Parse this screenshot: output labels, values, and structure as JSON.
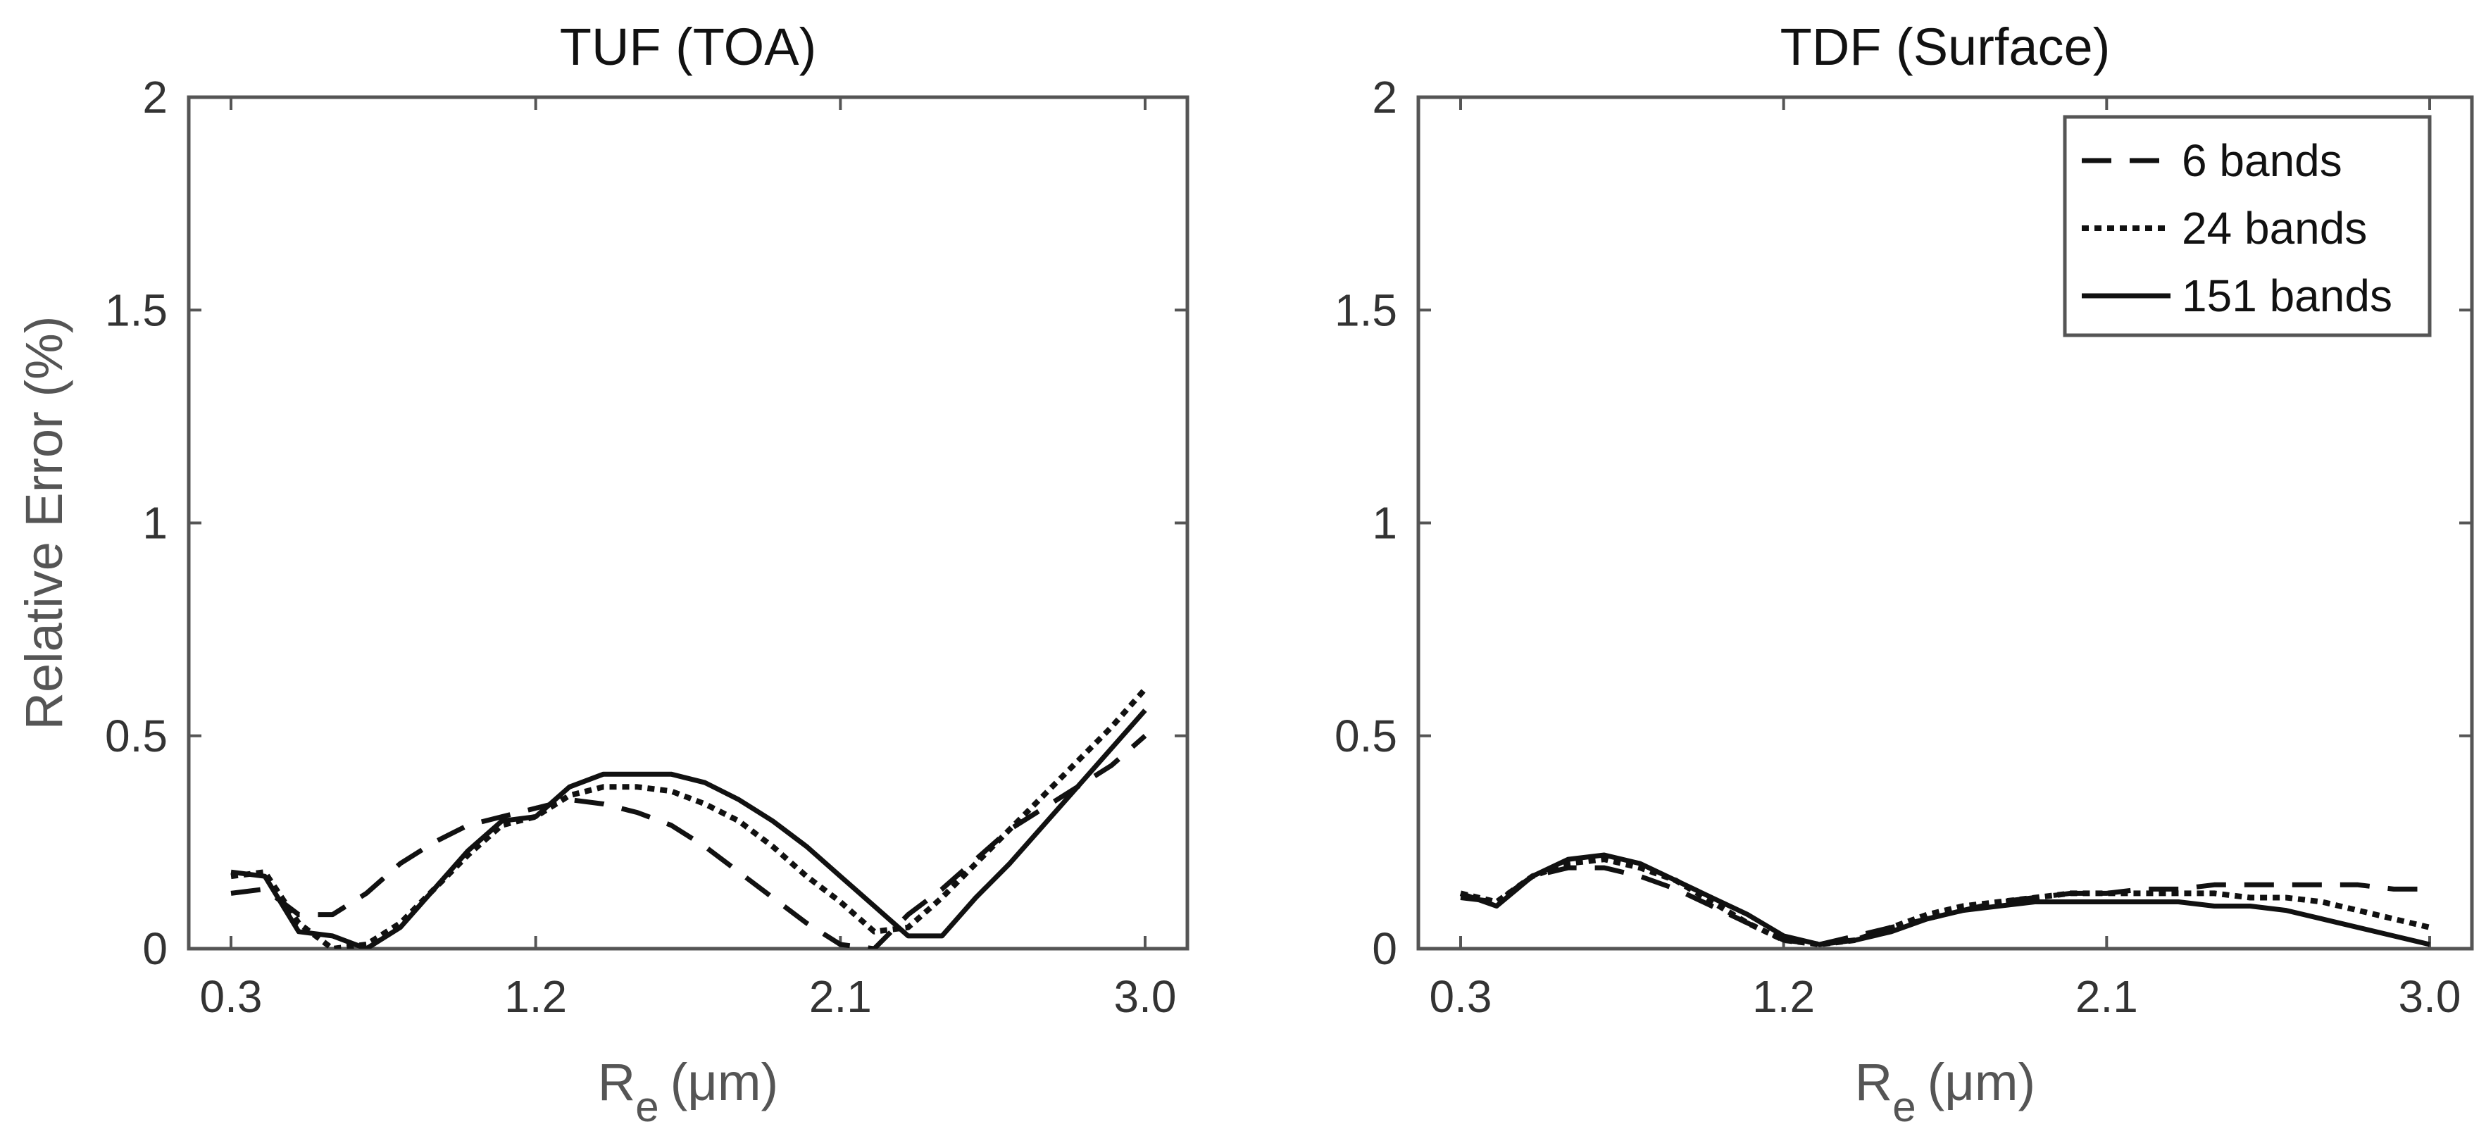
{
  "chart_data": [
    {
      "type": "line",
      "title": "TUF (TOA)",
      "xlabel_main": "R",
      "xlabel_sub": "e",
      "xlabel_unit": "(μm)",
      "ylabel": "Relative Error (%)",
      "xlim": [
        0.3,
        3.0
      ],
      "ylim": [
        0,
        2
      ],
      "xticks": [
        "0.3",
        "1.2",
        "2.1",
        "3.0"
      ],
      "xtick_values": [
        0.3,
        1.2,
        2.1,
        3.0
      ],
      "yticks": [
        "0",
        "0.5",
        "1",
        "1.5",
        "2"
      ],
      "ytick_values": [
        0,
        0.5,
        1,
        1.5,
        2
      ],
      "series": [
        {
          "name": "6 bands",
          "style": "dashed",
          "x": [
            0.3,
            0.4,
            0.5,
            0.6,
            0.7,
            0.8,
            0.9,
            1.0,
            1.1,
            1.2,
            1.3,
            1.4,
            1.5,
            1.6,
            1.7,
            1.8,
            1.9,
            2.0,
            2.1,
            2.2,
            2.3,
            2.4,
            2.5,
            2.6,
            2.7,
            2.8,
            2.9,
            3.0
          ],
          "y": [
            0.13,
            0.14,
            0.08,
            0.08,
            0.13,
            0.2,
            0.25,
            0.29,
            0.31,
            0.33,
            0.35,
            0.34,
            0.32,
            0.29,
            0.24,
            0.18,
            0.12,
            0.06,
            0.01,
            0.0,
            0.08,
            0.14,
            0.21,
            0.28,
            0.33,
            0.38,
            0.43,
            0.5
          ]
        },
        {
          "name": "24 bands",
          "style": "dotted",
          "x": [
            0.3,
            0.4,
            0.5,
            0.6,
            0.7,
            0.8,
            0.9,
            1.0,
            1.1,
            1.2,
            1.3,
            1.4,
            1.5,
            1.6,
            1.7,
            1.8,
            1.9,
            2.0,
            2.1,
            2.2,
            2.3,
            2.4,
            2.5,
            2.6,
            2.7,
            2.8,
            2.9,
            3.0
          ],
          "y": [
            0.17,
            0.18,
            0.06,
            0.0,
            0.01,
            0.06,
            0.14,
            0.22,
            0.29,
            0.31,
            0.36,
            0.38,
            0.38,
            0.37,
            0.34,
            0.3,
            0.24,
            0.17,
            0.11,
            0.04,
            0.05,
            0.12,
            0.2,
            0.28,
            0.36,
            0.44,
            0.52,
            0.61
          ]
        },
        {
          "name": "151 bands",
          "style": "solid",
          "x": [
            0.3,
            0.4,
            0.5,
            0.6,
            0.7,
            0.8,
            0.9,
            1.0,
            1.1,
            1.2,
            1.3,
            1.4,
            1.5,
            1.6,
            1.7,
            1.8,
            1.9,
            2.0,
            2.1,
            2.2,
            2.3,
            2.4,
            2.5,
            2.6,
            2.7,
            2.8,
            2.9,
            3.0
          ],
          "y": [
            0.18,
            0.17,
            0.04,
            0.03,
            0.0,
            0.05,
            0.14,
            0.23,
            0.3,
            0.31,
            0.38,
            0.41,
            0.41,
            0.41,
            0.39,
            0.35,
            0.3,
            0.24,
            0.17,
            0.1,
            0.03,
            0.03,
            0.12,
            0.2,
            0.29,
            0.38,
            0.47,
            0.56
          ]
        }
      ]
    },
    {
      "type": "line",
      "title": "TDF (Surface)",
      "xlabel_main": "R",
      "xlabel_sub": "e",
      "xlabel_unit": "(μm)",
      "ylabel": "",
      "xlim": [
        0.3,
        3.0
      ],
      "ylim": [
        0,
        2
      ],
      "xticks": [
        "0.3",
        "1.2",
        "2.1",
        "3.0"
      ],
      "xtick_values": [
        0.3,
        1.2,
        2.1,
        3.0
      ],
      "yticks": [
        "0",
        "0.5",
        "1",
        "1.5",
        "2"
      ],
      "ytick_values": [
        0,
        0.5,
        1,
        1.5,
        2
      ],
      "legend_position": "top-right",
      "series": [
        {
          "name": "6 bands",
          "style": "dashed",
          "x": [
            0.3,
            0.4,
            0.5,
            0.6,
            0.7,
            0.8,
            0.9,
            1.0,
            1.1,
            1.2,
            1.3,
            1.4,
            1.5,
            1.6,
            1.7,
            1.8,
            1.9,
            2.0,
            2.1,
            2.2,
            2.3,
            2.4,
            2.5,
            2.6,
            2.7,
            2.8,
            2.9,
            3.0
          ],
          "y": [
            0.12,
            0.11,
            0.17,
            0.19,
            0.19,
            0.17,
            0.14,
            0.1,
            0.06,
            0.02,
            0.01,
            0.03,
            0.05,
            0.07,
            0.09,
            0.11,
            0.12,
            0.13,
            0.13,
            0.14,
            0.14,
            0.15,
            0.15,
            0.15,
            0.15,
            0.15,
            0.14,
            0.14
          ]
        },
        {
          "name": "24 bands",
          "style": "dotted",
          "x": [
            0.3,
            0.4,
            0.5,
            0.6,
            0.7,
            0.8,
            0.9,
            1.0,
            1.1,
            1.2,
            1.3,
            1.4,
            1.5,
            1.6,
            1.7,
            1.8,
            1.9,
            2.0,
            2.1,
            2.2,
            2.3,
            2.4,
            2.5,
            2.6,
            2.7,
            2.8,
            2.9,
            3.0
          ],
          "y": [
            0.13,
            0.11,
            0.17,
            0.2,
            0.21,
            0.19,
            0.16,
            0.11,
            0.06,
            0.02,
            0.01,
            0.02,
            0.05,
            0.08,
            0.1,
            0.11,
            0.12,
            0.13,
            0.13,
            0.13,
            0.13,
            0.13,
            0.12,
            0.12,
            0.11,
            0.09,
            0.07,
            0.05
          ]
        },
        {
          "name": "151 bands",
          "style": "solid",
          "x": [
            0.3,
            0.4,
            0.5,
            0.6,
            0.7,
            0.8,
            0.9,
            1.0,
            1.1,
            1.2,
            1.3,
            1.4,
            1.5,
            1.6,
            1.7,
            1.8,
            1.9,
            2.0,
            2.1,
            2.2,
            2.3,
            2.4,
            2.5,
            2.6,
            2.7,
            2.8,
            2.9,
            3.0
          ],
          "y": [
            0.13,
            0.1,
            0.17,
            0.21,
            0.22,
            0.2,
            0.16,
            0.12,
            0.08,
            0.03,
            0.01,
            0.02,
            0.04,
            0.07,
            0.09,
            0.1,
            0.11,
            0.11,
            0.11,
            0.11,
            0.11,
            0.1,
            0.1,
            0.09,
            0.07,
            0.05,
            0.03,
            0.01
          ]
        }
      ]
    }
  ]
}
